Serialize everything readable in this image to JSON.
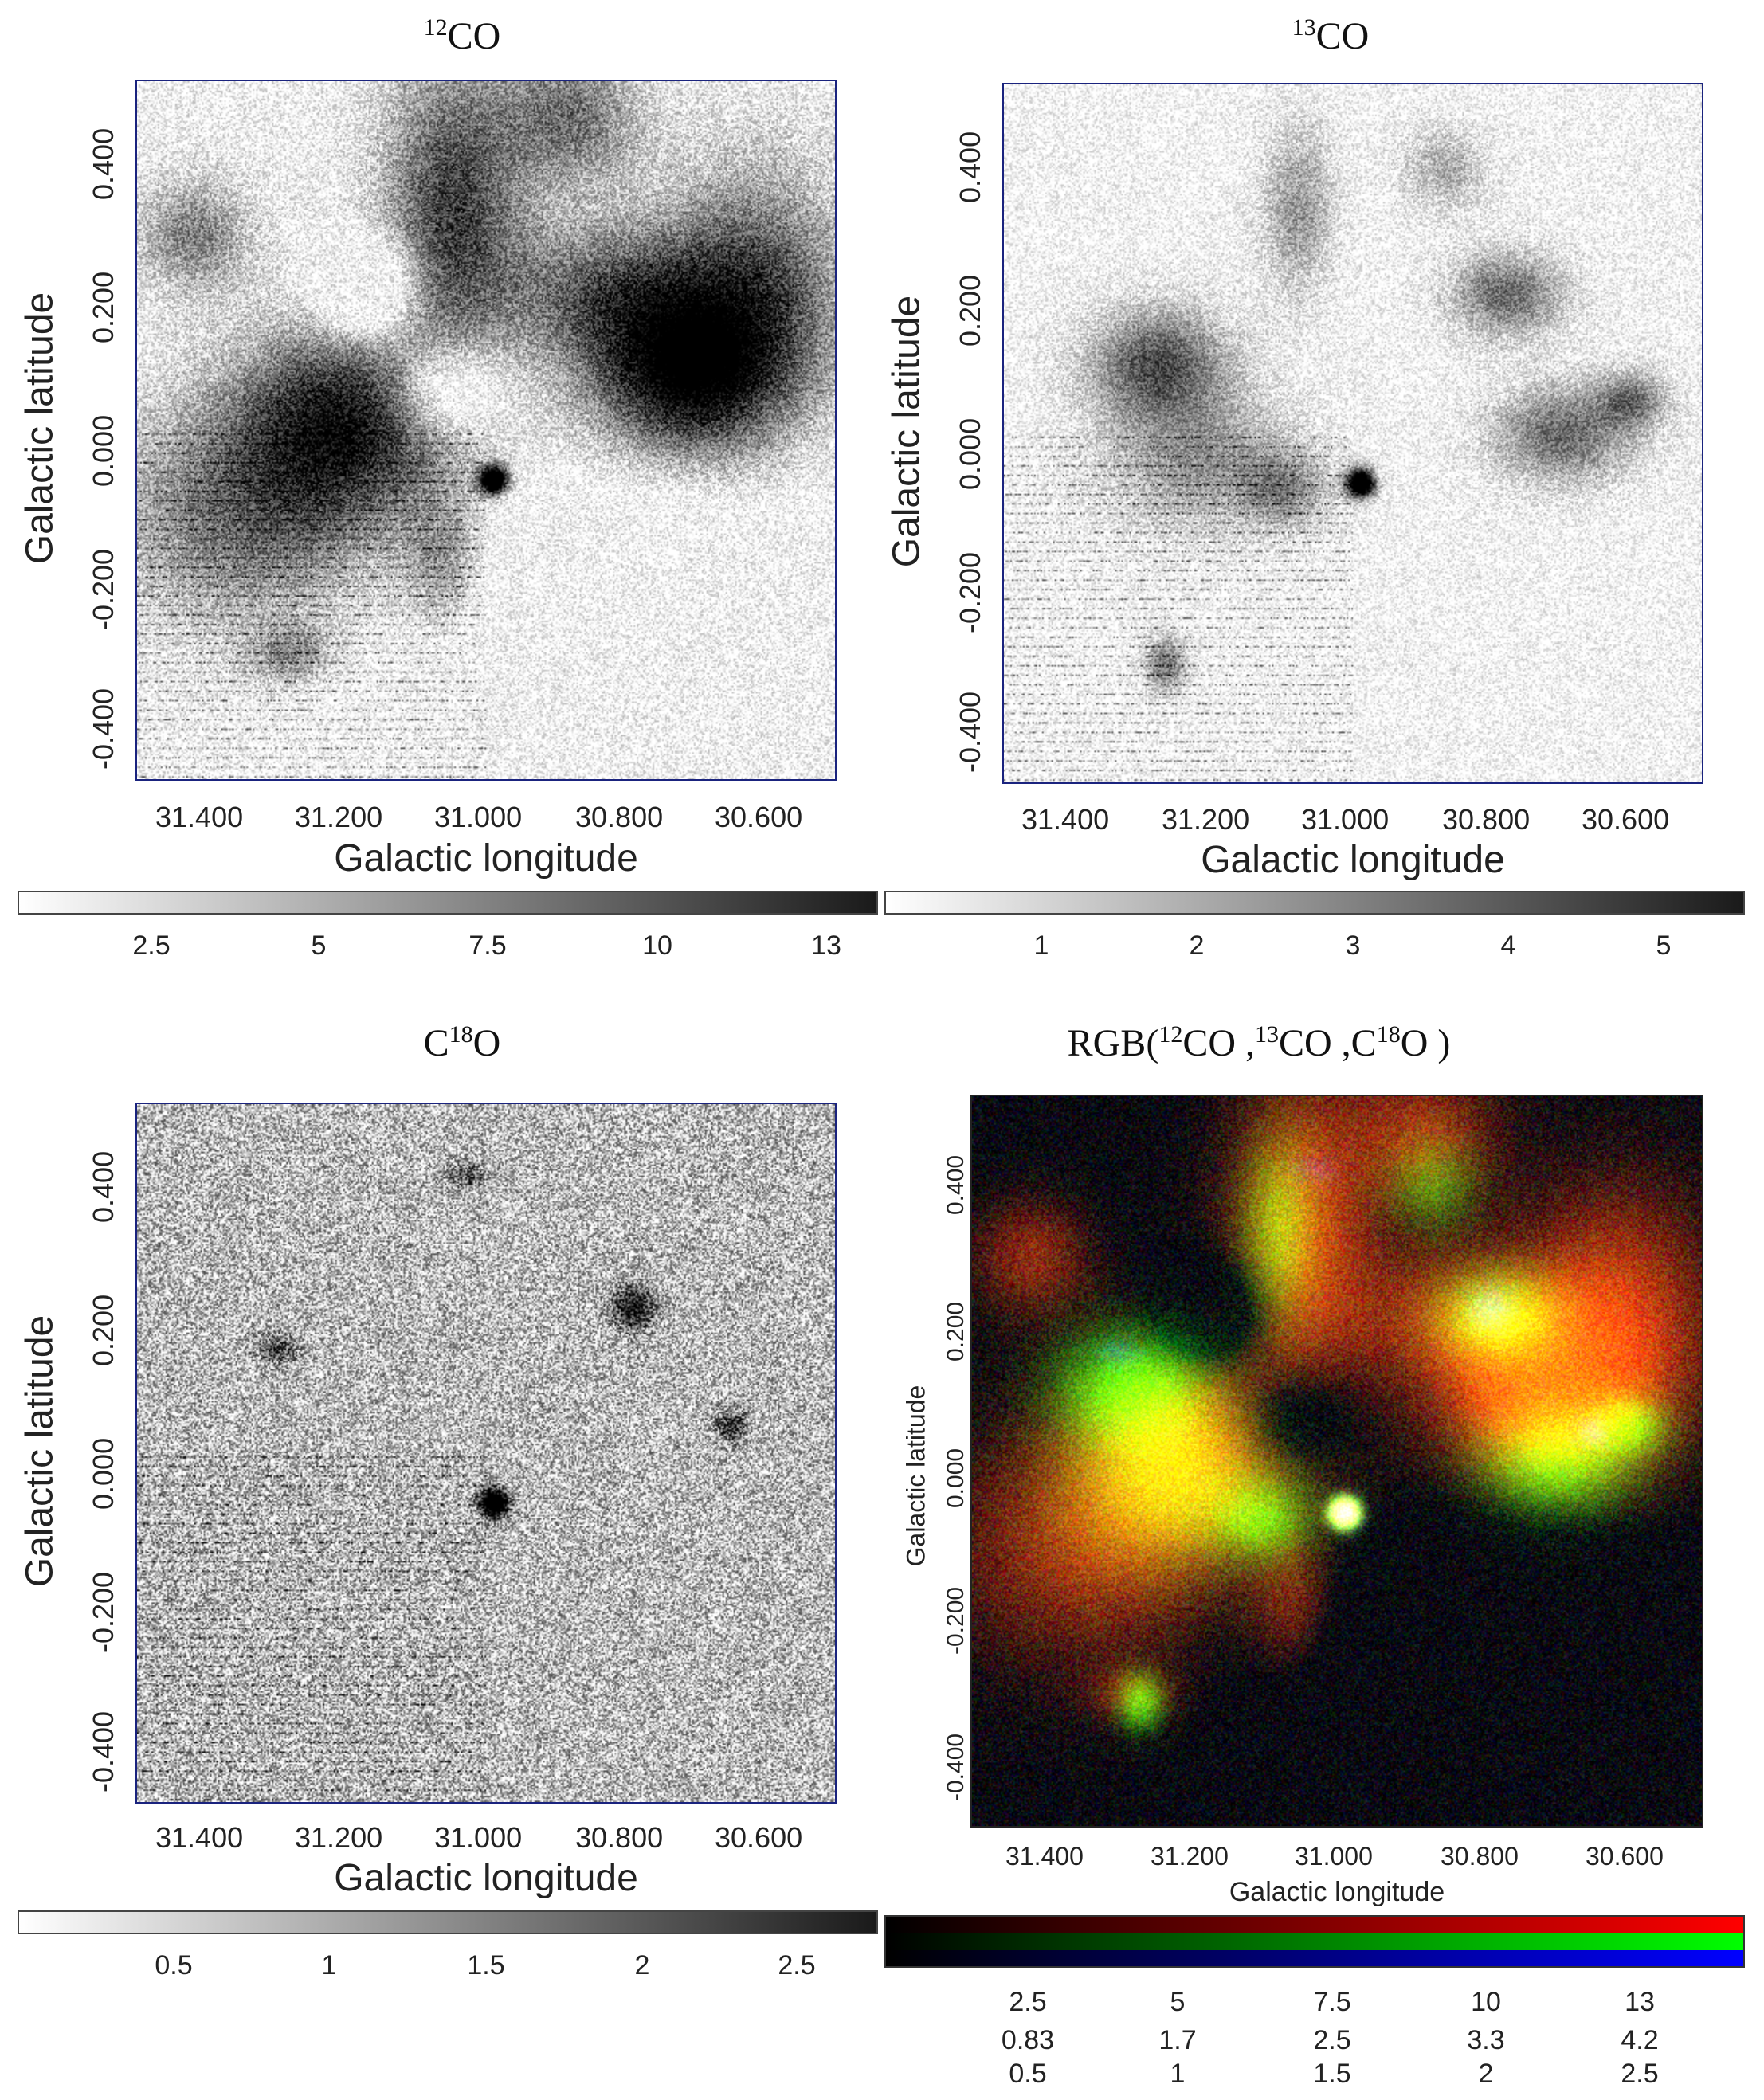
{
  "panels": [
    {
      "title_sup": "12",
      "title_text": "CO",
      "xlabel": "Galactic longitude",
      "ylabel": "Galactic latitude",
      "xticks": [
        "31.400",
        "31.200",
        "31.000",
        "30.800",
        "30.600"
      ],
      "yticks": [
        "0.400",
        "0.200",
        "0.000",
        "-0.200",
        "-0.400"
      ],
      "colorbar": [
        "2.5",
        "5",
        "7.5",
        "10",
        "13"
      ]
    },
    {
      "title_sup": "13",
      "title_text": "CO",
      "xlabel": "Galactic longitude",
      "ylabel": "Galactic latitude",
      "xticks": [
        "31.400",
        "31.200",
        "31.000",
        "30.800",
        "30.600"
      ],
      "yticks": [
        "0.400",
        "0.200",
        "0.000",
        "-0.200",
        "-0.400"
      ],
      "colorbar": [
        "1",
        "2",
        "3",
        "4",
        "5"
      ]
    },
    {
      "title_pre": "C",
      "title_sup": "18",
      "title_text": "O",
      "xlabel": "Galactic longitude",
      "ylabel": "Galactic latitude",
      "xticks": [
        "31.400",
        "31.200",
        "31.000",
        "30.800",
        "30.600"
      ],
      "yticks": [
        "0.400",
        "0.200",
        "0.000",
        "-0.200",
        "-0.400"
      ],
      "colorbar": [
        "0.5",
        "1",
        "1.5",
        "2",
        "2.5"
      ]
    },
    {
      "title_a": "RGB(",
      "title_a_sup": "12",
      "title_b": "CO ,",
      "title_b_sup": "13",
      "title_c": "CO ,C",
      "title_c_sup": "18",
      "title_d": "O )",
      "xlabel": "Galactic longitude",
      "ylabel": "Galactic latitude",
      "xticks": [
        "31.400",
        "31.200",
        "31.000",
        "30.800",
        "30.600"
      ],
      "yticks": [
        "0.400",
        "0.200",
        "0.000",
        "-0.200",
        "-0.400"
      ],
      "colorbar_rows": [
        [
          "2.5",
          "5",
          "7.5",
          "10",
          "13"
        ],
        [
          "0.83",
          "1.7",
          "2.5",
          "3.3",
          "4.2"
        ],
        [
          "0.5",
          "1",
          "1.5",
          "2",
          "2.5"
        ]
      ]
    }
  ],
  "colors": {
    "frame": "#1a237e",
    "red": "#ff0000",
    "green": "#00ff00",
    "blue": "#0000ff"
  }
}
